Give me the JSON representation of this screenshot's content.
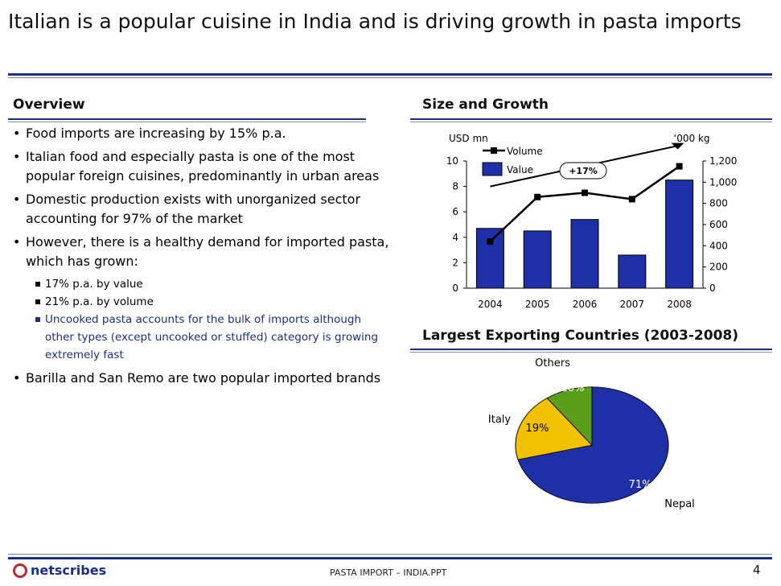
{
  "slide": {
    "title": "Italian is a popular cuisine in India and is driving growth in pasta imports",
    "page_number": "4",
    "footer_text": "PASTA IMPORT – INDIA.PPT",
    "logo_text": "netscribes"
  },
  "overview": {
    "heading": "Overview",
    "bullets": [
      "Food imports are increasing by 15% p.a.",
      "Italian food and especially pasta is one of the most popular foreign cuisines, predominantly in urban areas",
      "Domestic production exists with unorganized sector accounting for 97% of the market",
      "However, there is a healthy demand for imported pasta, which has grown:"
    ],
    "sub_bullets": [
      "17% p.a. by value",
      "21% p.a. by volume",
      "Uncooked pasta accounts for the bulk of imports although other types (except uncooked or stuffed) category is growing extremely fast"
    ],
    "last_bullet": "Barilla and San Remo are two popular imported brands"
  },
  "colors": {
    "accent": "#1a2e8c",
    "bar": "#1f2fa8",
    "pie_nepal": "#1f2fa8",
    "pie_italy": "#f2c200",
    "pie_others": "#5a9e1a"
  },
  "chart_data": [
    {
      "type": "bar",
      "title": "Size and Growth",
      "categories": [
        "2004",
        "2005",
        "2006",
        "2007",
        "2008"
      ],
      "series": [
        {
          "name": "Value",
          "axis": "left",
          "values": [
            4.7,
            4.5,
            5.4,
            2.6,
            8.5
          ]
        },
        {
          "name": "Volume",
          "axis": "right",
          "type": "line",
          "values": [
            440,
            860,
            900,
            840,
            1150
          ]
        }
      ],
      "ylabel_left": "USD mn",
      "ylabel_right": "‘000 kg",
      "ylim_left": [
        0,
        10
      ],
      "yticks_left": [
        "0",
        "2",
        "4",
        "6",
        "8",
        "10"
      ],
      "ylim_right": [
        0,
        1200
      ],
      "yticks_right": [
        "0",
        "200",
        "400",
        "600",
        "800",
        "1,000",
        "1,200"
      ],
      "annotation": "+17%",
      "legend": [
        "Volume",
        "Value"
      ]
    },
    {
      "type": "pie",
      "title": "Largest Exporting Countries (2003-2008)",
      "slices": [
        {
          "label": "Nepal",
          "value": 71,
          "text": "71%"
        },
        {
          "label": "Italy",
          "value": 19,
          "text": "19%"
        },
        {
          "label": "Others",
          "value": 10,
          "text": "10%"
        }
      ]
    }
  ]
}
